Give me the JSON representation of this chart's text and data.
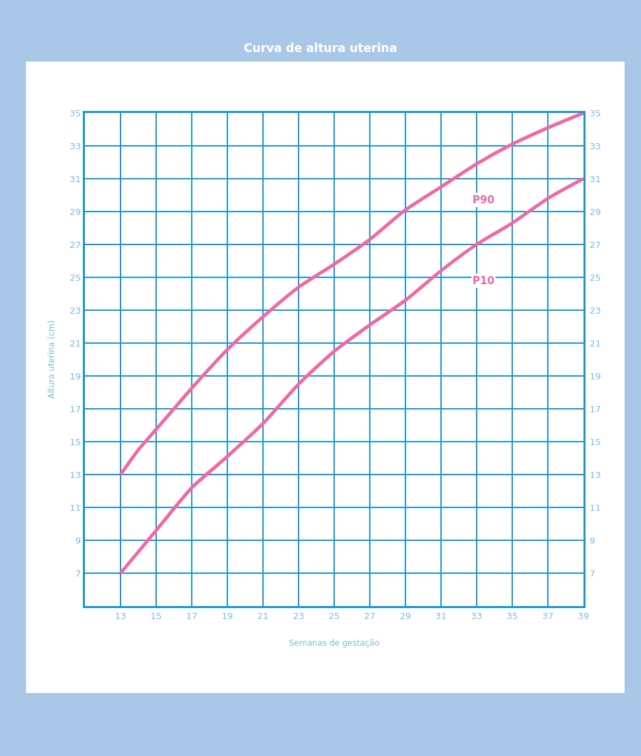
{
  "chart_data": {
    "type": "line",
    "title": "Curva de altura uterina",
    "xlabel": "Semanas de gestação",
    "ylabel": "Altura uterina (cm)",
    "series": [
      {
        "name": "P90",
        "color": "#ee6aa7",
        "x": [
          13,
          14,
          15,
          17,
          19,
          21,
          23,
          25,
          27,
          29,
          31,
          33,
          35,
          37,
          39
        ],
        "values": [
          13,
          14.5,
          15.75,
          18.25,
          20.6,
          22.6,
          24.4,
          25.8,
          27.3,
          29.1,
          30.5,
          31.9,
          33.1,
          34.1,
          35
        ]
      },
      {
        "name": "P10",
        "color": "#ee6aa7",
        "x": [
          13,
          15,
          17,
          19,
          21,
          23,
          25,
          27,
          29,
          31,
          33,
          35,
          37,
          39
        ],
        "values": [
          7,
          9.6,
          12.2,
          14.1,
          16.1,
          18.5,
          20.5,
          22.1,
          23.6,
          25.4,
          27.0,
          28.3,
          29.8,
          31
        ]
      }
    ],
    "xlim": [
      11,
      39
    ],
    "xticks": [
      13,
      15,
      17,
      19,
      21,
      23,
      25,
      27,
      29,
      31,
      33,
      35,
      37,
      39
    ],
    "ylim": [
      5,
      35
    ],
    "yticks": [
      7,
      9,
      11,
      13,
      15,
      17,
      19,
      21,
      23,
      25,
      27,
      29,
      31,
      33,
      35
    ],
    "y2lim": [
      5,
      35
    ],
    "y2ticks": [
      7,
      9,
      11,
      13,
      15,
      17,
      19,
      21,
      23,
      25,
      27,
      29,
      31,
      33,
      35
    ],
    "grid": true,
    "legend": false,
    "marker": "none",
    "line_style": "solid"
  }
}
